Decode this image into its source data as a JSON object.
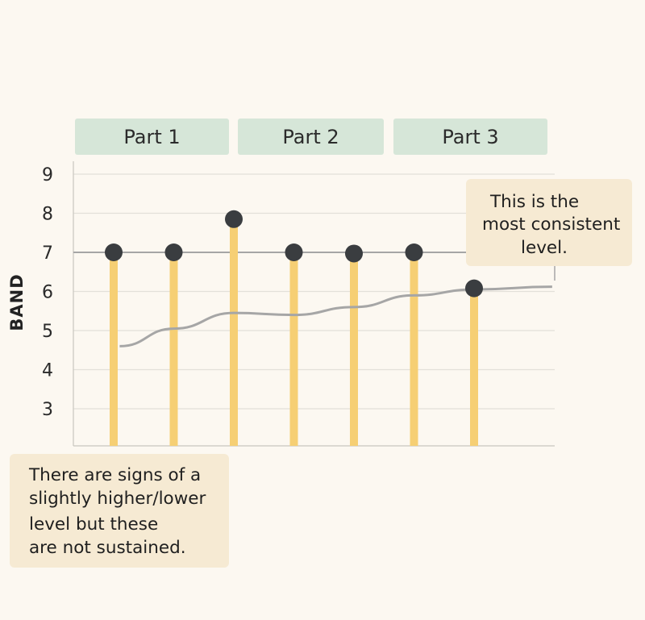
{
  "parts": [
    "Part 1",
    "Part 2",
    "Part 3"
  ],
  "notes": {
    "right": [
      "This is the",
      "most consistent",
      "level."
    ],
    "left": [
      "There are signs of a",
      "slightly higher/lower",
      "level but these",
      "are not sustained."
    ]
  },
  "colors": {
    "background": "#fcf8f1",
    "part_box": "#d6e6d8",
    "note_box": "#f6ead3",
    "stem": "#f6cf74",
    "marker": "#3a3d40",
    "trend_line": "#a6a6a6",
    "reference_line": "#a6a6a6",
    "grid": "#e3e0d9"
  },
  "chart_data": {
    "type": "lollipop",
    "ylabel": "BAND",
    "xlabel": "",
    "yticks": [
      3,
      4,
      5,
      6,
      7,
      8,
      9
    ],
    "ylim": [
      2,
      9
    ],
    "grid": true,
    "points": [
      {
        "x": 1,
        "value": 7.0
      },
      {
        "x": 2,
        "value": 7.0
      },
      {
        "x": 3,
        "value": 7.85
      },
      {
        "x": 4,
        "value": 7.0
      },
      {
        "x": 5,
        "value": 6.97
      },
      {
        "x": 6,
        "value": 7.0
      },
      {
        "x": 7,
        "value": 6.08
      }
    ],
    "reference_line": 7.0,
    "trend_line": [
      {
        "x": 1.1,
        "value": 4.6
      },
      {
        "x": 2,
        "value": 5.05
      },
      {
        "x": 3,
        "value": 5.45
      },
      {
        "x": 4,
        "value": 5.4
      },
      {
        "x": 5,
        "value": 5.6
      },
      {
        "x": 6,
        "value": 5.9
      },
      {
        "x": 7,
        "value": 6.05
      },
      {
        "x": 8.3,
        "value": 6.12
      }
    ]
  }
}
